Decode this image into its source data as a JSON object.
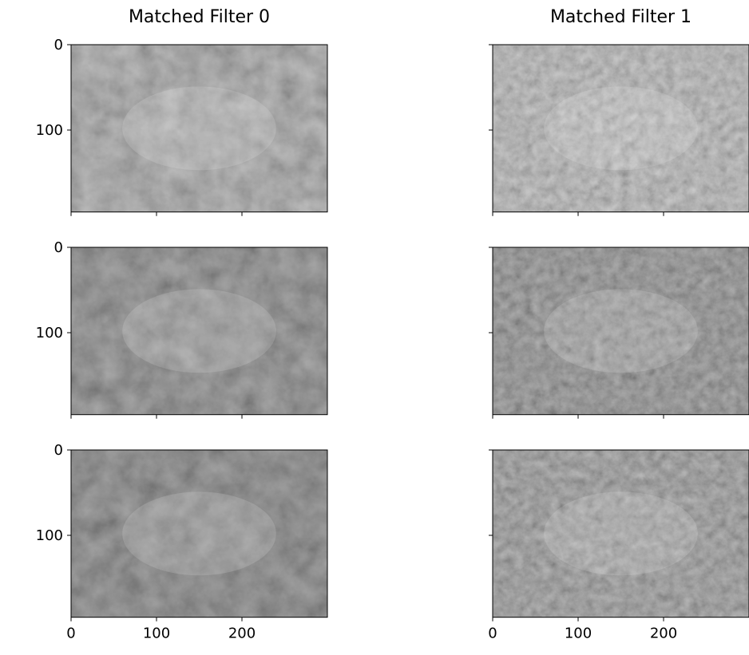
{
  "chart_data": [
    {
      "type": "image",
      "title": "Matched Filter 0",
      "xlim": [
        0,
        300
      ],
      "ylim": [
        196,
        0
      ],
      "xticks": [
        0,
        100,
        200
      ],
      "yticks": [
        0,
        100
      ]
    },
    {
      "type": "image",
      "title": "Matched Filter 1",
      "xlim": [
        0,
        300
      ],
      "ylim": [
        196,
        0
      ],
      "xticks": [
        0,
        100,
        200
      ],
      "yticks": [
        0,
        100
      ]
    },
    {
      "type": "image",
      "xlim": [
        0,
        300
      ],
      "ylim": [
        196,
        0
      ],
      "xticks": [
        0,
        100,
        200
      ],
      "yticks": [
        0,
        100
      ]
    },
    {
      "type": "image",
      "xlim": [
        0,
        300
      ],
      "ylim": [
        196,
        0
      ],
      "xticks": [
        0,
        100,
        200
      ],
      "yticks": [
        0,
        100
      ]
    },
    {
      "type": "image",
      "xlim": [
        0,
        300
      ],
      "ylim": [
        196,
        0
      ],
      "xticks": [
        0,
        100,
        200
      ],
      "yticks": [
        0,
        100
      ]
    },
    {
      "type": "image",
      "xlim": [
        0,
        300
      ],
      "ylim": [
        196,
        0
      ],
      "xticks": [
        0,
        100,
        200
      ],
      "yticks": [
        0,
        100
      ]
    }
  ]
}
